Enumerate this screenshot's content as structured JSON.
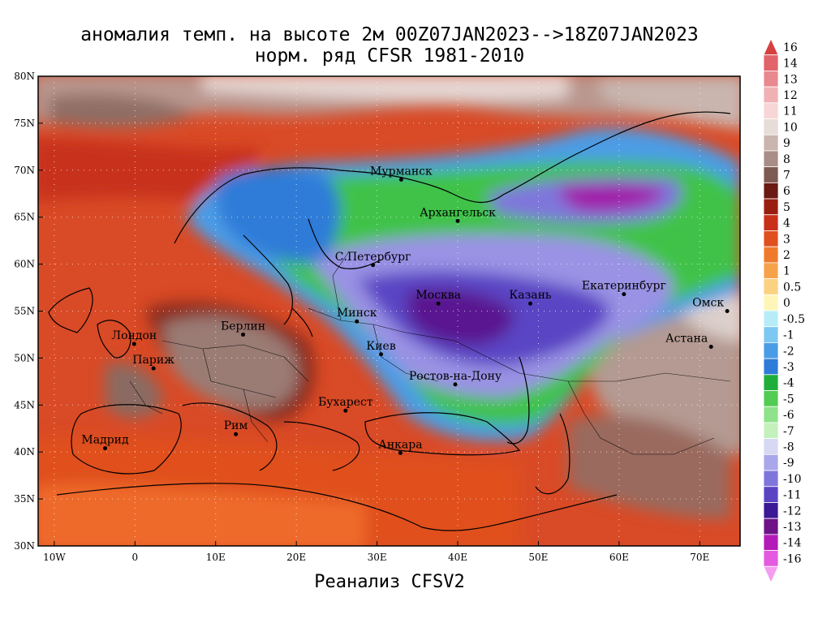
{
  "title_line1": "аномалия темп. на высоте 2м 00Z07JAN2023-->18Z07JAN2023",
  "title_line2": "норм. ряд CFSR 1981-2010",
  "footer": "Реанализ CFSV2",
  "map": {
    "lon_range": [
      -12,
      75
    ],
    "lat_range": [
      30,
      80
    ],
    "lat_ticks": [
      "30N",
      "35N",
      "40N",
      "45N",
      "50N",
      "55N",
      "60N",
      "65N",
      "70N",
      "75N",
      "80N"
    ],
    "lon_ticks": [
      "10W",
      "0",
      "10E",
      "20E",
      "30E",
      "40E",
      "50E",
      "60E",
      "70E"
    ],
    "cities": [
      {
        "name": "Мурманск",
        "lon": 33,
        "lat": 69
      },
      {
        "name": "Архангельск",
        "lon": 40,
        "lat": 64.6
      },
      {
        "name": "С.Петербург",
        "lon": 29.5,
        "lat": 59.9
      },
      {
        "name": "Москва",
        "lon": 37.6,
        "lat": 55.8
      },
      {
        "name": "Казань",
        "lon": 49,
        "lat": 55.8
      },
      {
        "name": "Екатеринбург",
        "lon": 60.6,
        "lat": 56.8
      },
      {
        "name": "Минск",
        "lon": 27.5,
        "lat": 53.9
      },
      {
        "name": "Киев",
        "lon": 30.5,
        "lat": 50.4
      },
      {
        "name": "Омск",
        "lon": 73.4,
        "lat": 55
      },
      {
        "name": "Астана",
        "lon": 71.4,
        "lat": 51.2
      },
      {
        "name": "Лондон",
        "lon": -0.1,
        "lat": 51.5
      },
      {
        "name": "Париж",
        "lon": 2.3,
        "lat": 48.9
      },
      {
        "name": "Берлин",
        "lon": 13.4,
        "lat": 52.5
      },
      {
        "name": "Ростов-на-Дону",
        "lon": 39.7,
        "lat": 47.2
      },
      {
        "name": "Бухарест",
        "lon": 26.1,
        "lat": 44.4
      },
      {
        "name": "Рим",
        "lon": 12.5,
        "lat": 41.9
      },
      {
        "name": "Мадрид",
        "lon": -3.7,
        "lat": 40.4
      },
      {
        "name": "Анкара",
        "lon": 32.9,
        "lat": 39.9
      }
    ]
  },
  "colorbar": {
    "levels": [
      {
        "label": "16",
        "color": "#d5413f"
      },
      {
        "label": "14",
        "color": "#e0646a"
      },
      {
        "label": "13",
        "color": "#e8898f"
      },
      {
        "label": "12",
        "color": "#f0b1b4"
      },
      {
        "label": "11",
        "color": "#f6d6d6"
      },
      {
        "label": "10",
        "color": "#e6dcd8"
      },
      {
        "label": "9",
        "color": "#c9b5ae"
      },
      {
        "label": "8",
        "color": "#a88e87"
      },
      {
        "label": "7",
        "color": "#7d5a52"
      },
      {
        "label": "6",
        "color": "#6a1a12"
      },
      {
        "label": "5",
        "color": "#9a1e10"
      },
      {
        "label": "4",
        "color": "#c8301a"
      },
      {
        "label": "3",
        "color": "#e0501e"
      },
      {
        "label": "2",
        "color": "#f07a2c"
      },
      {
        "label": "1",
        "color": "#f6a24a"
      },
      {
        "label": "0.5",
        "color": "#fbd282"
      },
      {
        "label": "0",
        "color": "#fdf6b8"
      },
      {
        "label": "-0.5",
        "color": "#b6ecf8"
      },
      {
        "label": "-1",
        "color": "#7dc8f2"
      },
      {
        "label": "-2",
        "color": "#4b9ce6"
      },
      {
        "label": "-3",
        "color": "#2f7bd8"
      },
      {
        "label": "-4",
        "color": "#1fae3a"
      },
      {
        "label": "-5",
        "color": "#52cc52"
      },
      {
        "label": "-6",
        "color": "#8ee28a"
      },
      {
        "label": "-7",
        "color": "#c4f0bc"
      },
      {
        "label": "-8",
        "color": "#d6d8f4"
      },
      {
        "label": "-9",
        "color": "#a9a6ea"
      },
      {
        "label": "-10",
        "color": "#7f76dc"
      },
      {
        "label": "-11",
        "color": "#5a44c4"
      },
      {
        "label": "-12",
        "color": "#3a1896"
      },
      {
        "label": "-13",
        "color": "#6e1288"
      },
      {
        "label": "-14",
        "color": "#b41ab8"
      },
      {
        "label": "-16",
        "color": "#e35ae0"
      },
      {
        "label": "",
        "color": "#f49cf0"
      }
    ]
  }
}
